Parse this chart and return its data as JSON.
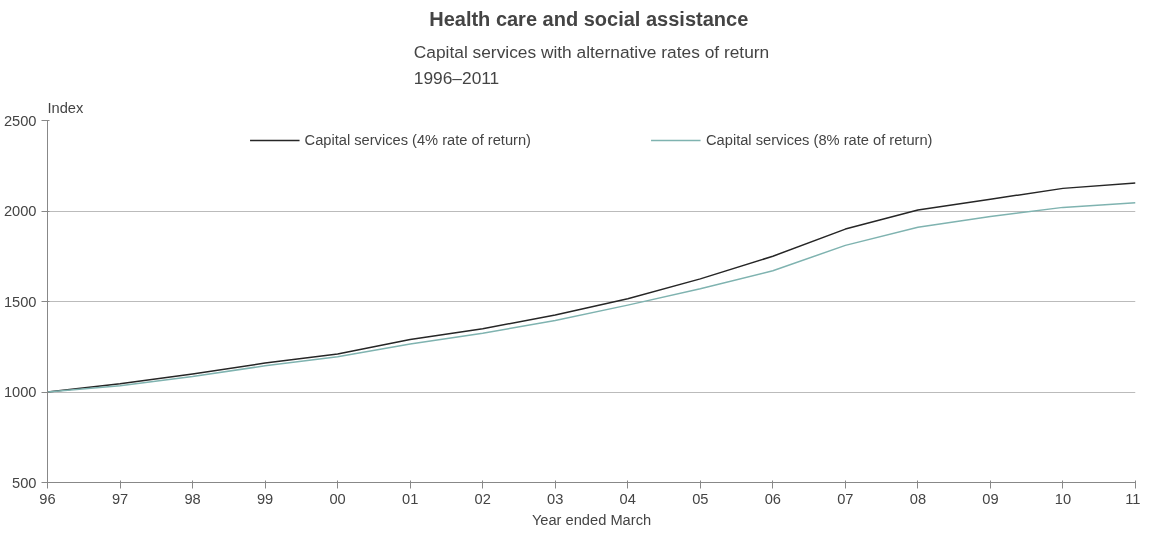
{
  "chart_data": {
    "type": "line",
    "title": "Health  care and social assistance",
    "subtitle": "Capital services with alternative rates of return\n1996–2011",
    "xlabel": "Year ended March",
    "ylabel": "Index",
    "categories": [
      "96",
      "97",
      "98",
      "99",
      "00",
      "01",
      "02",
      "03",
      "04",
      "05",
      "06",
      "07",
      "08",
      "09",
      "10",
      "11"
    ],
    "series": [
      {
        "name": "Capital services (4% rate of return)",
        "color": "#262626",
        "values": [
          1000,
          1045,
          1100,
          1160,
          1210,
          1290,
          1350,
          1425,
          1515,
          1625,
          1750,
          1900,
          2005,
          2065,
          2125,
          2155
        ]
      },
      {
        "name": "Capital services (8% rate of return)",
        "color": "#7fb3b0",
        "values": [
          1000,
          1035,
          1085,
          1145,
          1195,
          1265,
          1325,
          1395,
          1480,
          1570,
          1670,
          1810,
          1910,
          1970,
          2020,
          2045
        ]
      }
    ],
    "ylim": [
      500,
      2500
    ],
    "yticks": [
      500,
      1000,
      1500,
      2000,
      2500
    ],
    "grid": "y",
    "legend": "top",
    "line_style": "solid"
  }
}
